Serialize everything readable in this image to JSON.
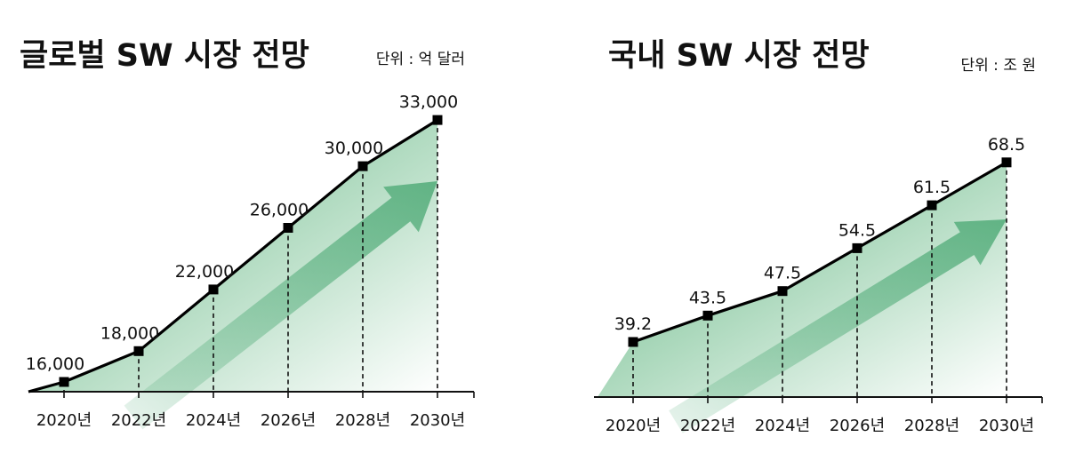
{
  "colors": {
    "line": "#000000",
    "fill_dark": "#5fb57f",
    "fill_light": "#ffffff",
    "arrow": "#4aa873"
  },
  "chart_data": [
    {
      "type": "area",
      "title": "글로벌 SW 시장 전망",
      "unit": "단위 : 억 달러",
      "categories": [
        "2020년",
        "2022년",
        "2024년",
        "2026년",
        "2028년",
        "2030년"
      ],
      "x": [
        2020,
        2022,
        2024,
        2026,
        2028,
        2030
      ],
      "values": [
        16000,
        18000,
        22000,
        26000,
        30000,
        33000
      ],
      "data_labels": [
        "16,000",
        "18,000",
        "22,000",
        "26,000",
        "30,000",
        "33,000"
      ],
      "grid": false,
      "legend": "none"
    },
    {
      "type": "area",
      "title": "국내 SW 시장 전망",
      "unit": "단위 : 조 원",
      "categories": [
        "2020년",
        "2022년",
        "2024년",
        "2026년",
        "2028년",
        "2030년"
      ],
      "x": [
        2020,
        2022,
        2024,
        2026,
        2028,
        2030
      ],
      "values": [
        39.2,
        43.5,
        47.5,
        54.5,
        61.5,
        68.5
      ],
      "data_labels": [
        "39.2",
        "43.5",
        "47.5",
        "54.5",
        "61.5",
        "68.5"
      ],
      "grid": false,
      "legend": "none"
    }
  ]
}
